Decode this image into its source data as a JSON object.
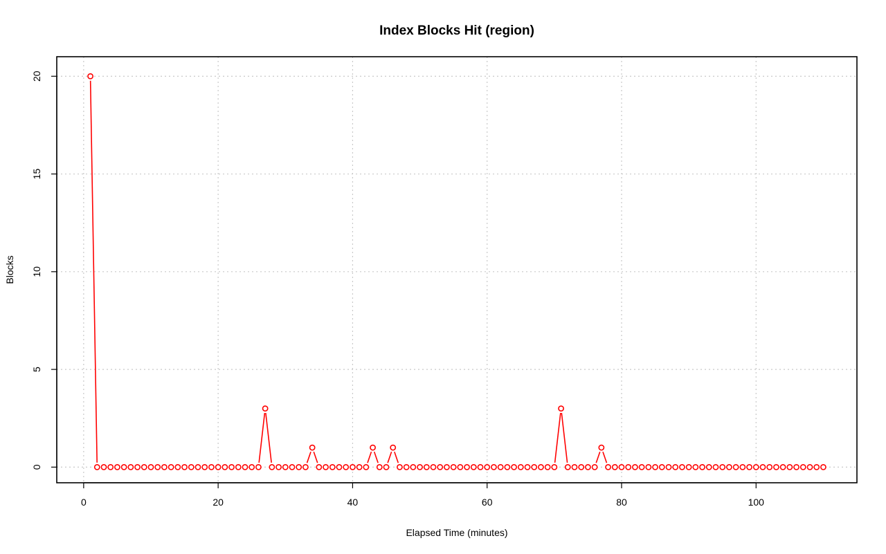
{
  "chart_data": {
    "type": "line",
    "title": "Index Blocks Hit (region)",
    "xlabel": "Elapsed Time (minutes)",
    "ylabel": "Blocks",
    "xlim": [
      -4,
      115
    ],
    "ylim": [
      -0.8,
      21
    ],
    "x_ticks": [
      0,
      20,
      40,
      60,
      80,
      100
    ],
    "y_ticks": [
      0,
      5,
      10,
      15,
      20
    ],
    "grid": true,
    "color": "#ff0000",
    "series": [
      {
        "x": [
          1,
          2,
          3,
          4,
          5,
          6,
          7,
          8,
          9,
          10,
          11,
          12,
          13,
          14,
          15,
          16,
          17,
          18,
          19,
          20,
          21,
          22,
          23,
          24,
          25,
          26,
          27,
          28,
          29,
          30,
          31,
          32,
          33,
          34,
          35,
          36,
          37,
          38,
          39,
          40,
          41,
          42,
          43,
          44,
          45,
          46,
          47,
          48,
          49,
          50,
          51,
          52,
          53,
          54,
          55,
          56,
          57,
          58,
          59,
          60,
          61,
          62,
          63,
          64,
          65,
          66,
          67,
          68,
          69,
          70,
          71,
          72,
          73,
          74,
          75,
          76,
          77,
          78,
          79,
          80,
          81,
          82,
          83,
          84,
          85,
          86,
          87,
          88,
          89,
          90,
          91,
          92,
          93,
          94,
          95,
          96,
          97,
          98,
          99,
          100,
          101,
          102,
          103,
          104,
          105,
          106,
          107,
          108,
          109,
          110
        ],
        "values": [
          20,
          0,
          0,
          0,
          0,
          0,
          0,
          0,
          0,
          0,
          0,
          0,
          0,
          0,
          0,
          0,
          0,
          0,
          0,
          0,
          0,
          0,
          0,
          0,
          0,
          0,
          3,
          0,
          0,
          0,
          0,
          0,
          0,
          1,
          0,
          0,
          0,
          0,
          0,
          0,
          0,
          0,
          1,
          0,
          0,
          1,
          0,
          0,
          0,
          0,
          0,
          0,
          0,
          0,
          0,
          0,
          0,
          0,
          0,
          0,
          0,
          0,
          0,
          0,
          0,
          0,
          0,
          0,
          0,
          0,
          3,
          0,
          0,
          0,
          0,
          0,
          1,
          0,
          0,
          0,
          0,
          0,
          0,
          0,
          0,
          0,
          0,
          0,
          0,
          0,
          0,
          0,
          0,
          0,
          0,
          0,
          0,
          0,
          0,
          0,
          0,
          0,
          0,
          0,
          0,
          0,
          0,
          0,
          0,
          0
        ]
      }
    ]
  }
}
